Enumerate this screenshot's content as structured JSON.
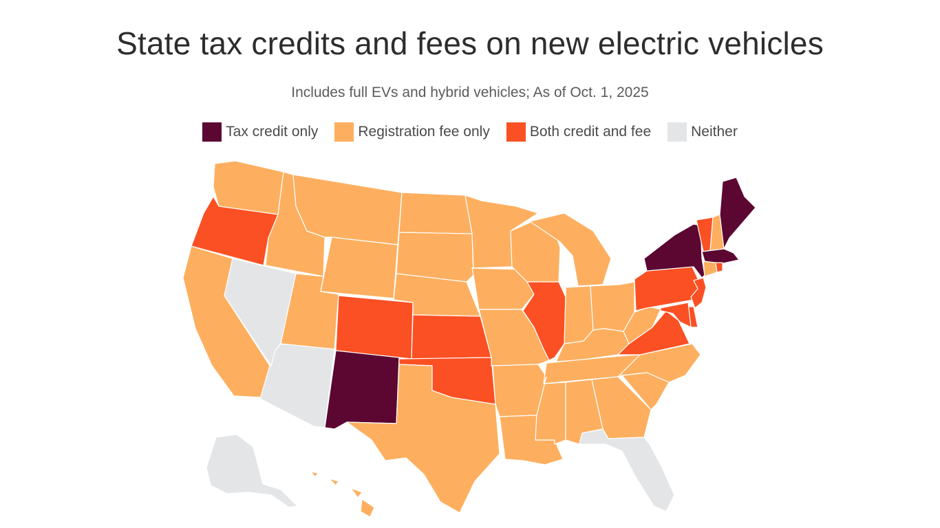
{
  "title": "State tax credits and fees on new electric vehicles",
  "subtitle": "Includes full EVs and hybrid vehicles; As of Oct. 1, 2025",
  "legend": [
    {
      "key": "credit",
      "label": "Tax credit only",
      "color": "#5c0632"
    },
    {
      "key": "fee",
      "label": "Registration fee only",
      "color": "#fdaf5f"
    },
    {
      "key": "both",
      "label": "Both credit and fee",
      "color": "#fb5023"
    },
    {
      "key": "neither",
      "label": "Neither",
      "color": "#e4e5e7"
    }
  ],
  "states": {
    "WA": "fee",
    "OR": "both",
    "CA": "fee",
    "NV": "neither",
    "ID": "fee",
    "MT": "fee",
    "WY": "fee",
    "UT": "fee",
    "AZ": "neither",
    "CO": "both",
    "NM": "credit",
    "ND": "fee",
    "SD": "fee",
    "NE": "fee",
    "KS": "both",
    "OK": "both",
    "TX": "fee",
    "MN": "fee",
    "IA": "fee",
    "MO": "fee",
    "AR": "fee",
    "LA": "fee",
    "WI": "fee",
    "IL": "both",
    "MI": "fee",
    "IN": "fee",
    "OH": "fee",
    "KY": "fee",
    "TN": "fee",
    "MS": "fee",
    "AL": "fee",
    "GA": "fee",
    "FL": "neither",
    "SC": "fee",
    "NC": "fee",
    "VA": "both",
    "WV": "fee",
    "PA": "both",
    "NY": "credit",
    "VT": "both",
    "NH": "fee",
    "ME": "credit",
    "MA": "credit",
    "RI": "both",
    "CT": "fee",
    "NJ": "both",
    "DE": "both",
    "MD": "both",
    "AK": "neither",
    "HI": "fee"
  }
}
